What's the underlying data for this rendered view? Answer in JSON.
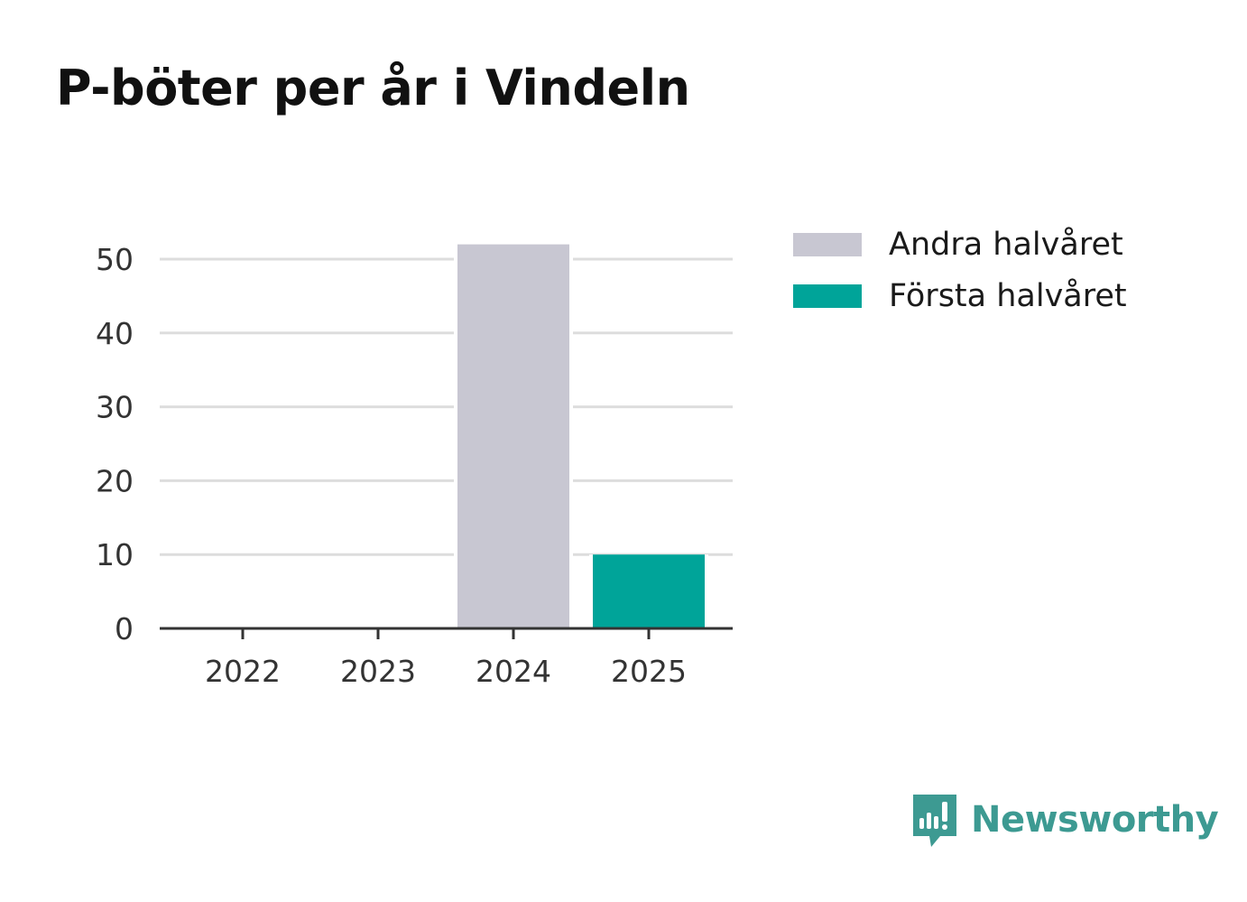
{
  "title": "P-böter per år i Vindeln",
  "brand": {
    "name": "Newsworthy",
    "icon": "newsworthy-logo-icon",
    "color": "#3d9a92"
  },
  "chart_data": {
    "type": "bar",
    "title": "P-böter per år i Vindeln",
    "xlabel": "",
    "ylabel": "",
    "categories": [
      "2022",
      "2023",
      "2024",
      "2025"
    ],
    "series": [
      {
        "name": "Andra halvåret",
        "color": "#c8c7d2",
        "values": [
          0,
          0,
          52,
          0
        ]
      },
      {
        "name": "Första halvåret",
        "color": "#00a499",
        "values": [
          0,
          0,
          0,
          10
        ]
      }
    ],
    "yticks": [
      0,
      10,
      20,
      30,
      40,
      50
    ],
    "ylim": [
      0,
      52
    ],
    "grid": true,
    "legend": "top-right"
  }
}
